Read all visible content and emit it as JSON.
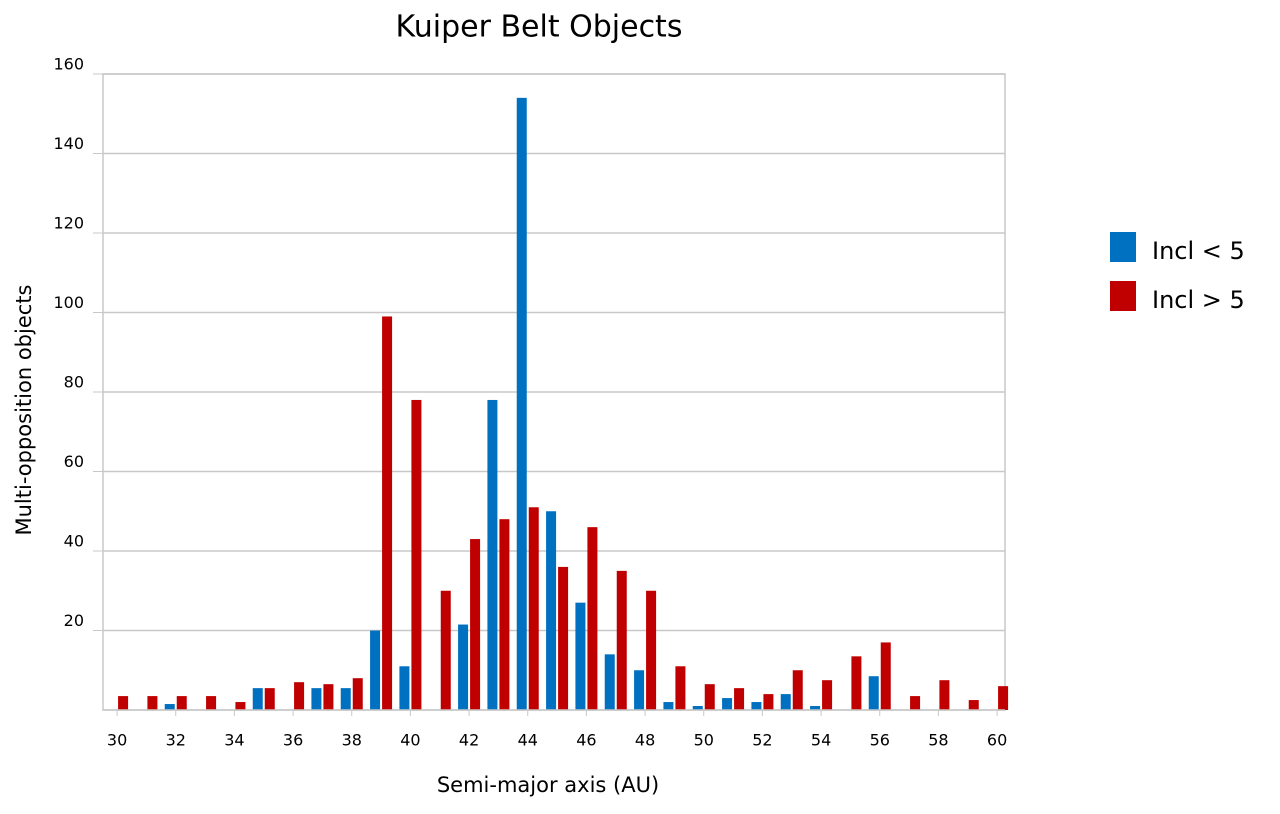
{
  "chart_data": {
    "type": "bar",
    "title": "Kuiper Belt Objects",
    "x_label": "Semi-major axis (AU)",
    "y_label": "Multi-opposition objects",
    "x": [
      30,
      31,
      32,
      33,
      34,
      35,
      36,
      37,
      38,
      39,
      40,
      41,
      42,
      43,
      44,
      45,
      46,
      47,
      48,
      49,
      50,
      51,
      52,
      53,
      54,
      55,
      56,
      57,
      58,
      59,
      60
    ],
    "series": [
      {
        "name": "Incl < 5",
        "color": "#0070c0",
        "values": [
          0,
          0,
          1.5,
          0,
          0,
          5.5,
          0,
          5.5,
          5.5,
          20,
          11,
          0,
          21.5,
          78,
          154,
          50,
          27,
          14,
          10,
          2,
          1,
          3,
          2,
          4,
          1,
          0,
          8.5,
          0,
          0,
          0,
          0
        ]
      },
      {
        "name": "Incl > 5",
        "color": "#c00000",
        "values": [
          3.5,
          3.5,
          3.5,
          3.5,
          2,
          5.5,
          7,
          6.5,
          8,
          99,
          78,
          30,
          43,
          48,
          51,
          36,
          46,
          35,
          30,
          11,
          6.5,
          5.5,
          4,
          10,
          7.5,
          13.5,
          17,
          3.5,
          7.5,
          2.5,
          6
        ]
      }
    ],
    "xlim": [
      29.52,
      60.27
    ],
    "xticks": [
      30,
      32,
      34,
      36,
      38,
      40,
      42,
      44,
      46,
      48,
      50,
      52,
      54,
      56,
      58,
      60
    ],
    "ylim": [
      0,
      160
    ],
    "yticks": [
      20,
      40,
      60,
      80,
      100,
      120,
      140,
      160
    ],
    "grid": true,
    "legend": "right"
  }
}
